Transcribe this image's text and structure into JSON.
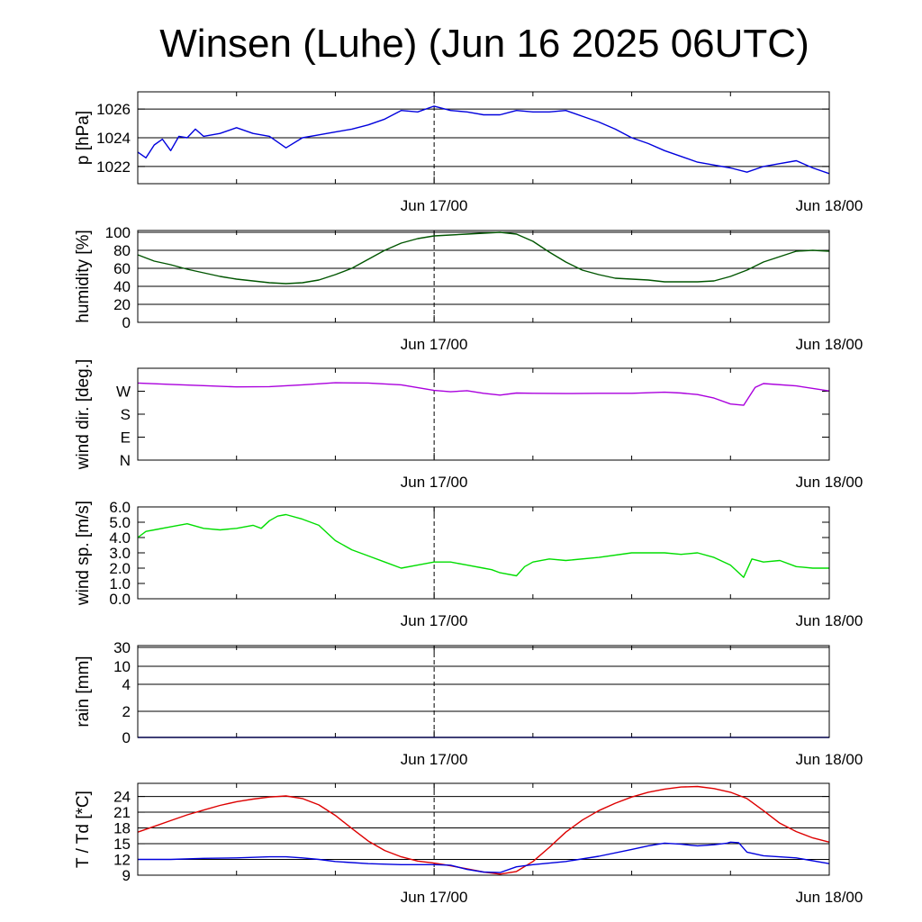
{
  "title": "Winsen (Luhe) (Jun 16 2025 06UTC)",
  "x_tick_labels": [
    "Jun 17/00",
    "Jun 18/00"
  ],
  "chart_data": [
    {
      "type": "line",
      "ylabel": "p [hPa]",
      "ylim": [
        1020.8,
        1027.2
      ],
      "ytick_values": [
        1022,
        1024,
        1026
      ],
      "ytick_labels": [
        "1022",
        "1024",
        "1026"
      ],
      "grid": true,
      "series": [
        {
          "color": "#0000dd",
          "x": [
            0,
            0.5,
            1,
            1.5,
            2,
            2.5,
            3,
            3.5,
            4,
            5,
            6,
            7,
            8,
            9,
            10,
            11,
            12,
            13,
            14,
            15,
            16,
            17,
            18,
            19,
            20,
            21,
            22,
            23,
            24,
            25,
            26,
            27,
            28,
            29,
            30,
            31,
            32,
            33,
            34,
            35,
            36,
            37,
            38,
            39,
            40,
            41,
            42
          ],
          "y": [
            1023.0,
            1022.6,
            1023.5,
            1023.9,
            1023.1,
            1024.1,
            1024.0,
            1024.6,
            1024.1,
            1024.3,
            1024.7,
            1024.3,
            1024.1,
            1023.3,
            1024.0,
            1024.2,
            1024.4,
            1024.6,
            1024.9,
            1025.3,
            1025.9,
            1025.8,
            1026.2,
            1025.9,
            1025.8,
            1025.6,
            1025.6,
            1025.9,
            1025.8,
            1025.8,
            1025.9,
            1025.5,
            1025.1,
            1024.6,
            1024.0,
            1023.6,
            1023.1,
            1022.7,
            1022.3,
            1022.1,
            1021.9,
            1021.6,
            1022.0,
            1022.2,
            1022.4,
            1021.9,
            1021.5
          ]
        }
      ]
    },
    {
      "type": "line",
      "ylabel": "humidity [%]",
      "ylim": [
        0,
        102
      ],
      "ytick_values": [
        0,
        20,
        40,
        60,
        80,
        100
      ],
      "ytick_labels": [
        "0",
        "20",
        "40",
        "60",
        "80",
        "100"
      ],
      "grid": true,
      "series": [
        {
          "color": "#005500",
          "x": [
            0,
            1,
            2,
            3,
            4,
            5,
            6,
            7,
            8,
            9,
            10,
            11,
            12,
            13,
            14,
            15,
            16,
            17,
            18,
            19,
            20,
            21,
            22,
            23,
            24,
            25,
            26,
            27,
            28,
            29,
            30,
            31,
            32,
            33,
            34,
            35,
            36,
            37,
            38,
            39,
            40,
            41,
            42
          ],
          "y": [
            75,
            68,
            64,
            59,
            55,
            51,
            48,
            46,
            44,
            43,
            44,
            47,
            53,
            60,
            70,
            80,
            88,
            93,
            96,
            97,
            98,
            99,
            100,
            98,
            90,
            78,
            67,
            58,
            53,
            49,
            48,
            47,
            45,
            45,
            45,
            46,
            51,
            58,
            67,
            73,
            79,
            80,
            79
          ]
        }
      ]
    },
    {
      "type": "line",
      "ylabel": "wind dir. [deg.]",
      "ylim": [
        0,
        360
      ],
      "ytick_values": [
        0,
        90,
        180,
        270
      ],
      "ytick_labels": [
        "N",
        "E",
        "S",
        "W"
      ],
      "grid": false,
      "series": [
        {
          "color": "#aa00dd",
          "x": [
            0,
            2,
            4,
            6,
            8,
            10,
            12,
            14,
            16,
            18,
            19,
            20,
            21,
            22,
            23,
            24,
            26,
            28,
            30,
            32,
            33,
            34,
            35,
            36,
            36.8,
            37.5,
            38,
            40,
            42
          ],
          "y": [
            302,
            297,
            292,
            287,
            288,
            295,
            303,
            302,
            295,
            273,
            268,
            272,
            262,
            255,
            263,
            262,
            261,
            262,
            262,
            266,
            263,
            257,
            243,
            220,
            215,
            285,
            300,
            291,
            271
          ]
        }
      ]
    },
    {
      "type": "line",
      "ylabel": "wind sp. [m/s]",
      "ylim": [
        0,
        6.0
      ],
      "ytick_values": [
        0,
        1,
        2,
        3,
        4,
        5,
        6
      ],
      "ytick_labels": [
        "0.0",
        "1.0",
        "2.0",
        "3.0",
        "4.0",
        "5.0",
        "6.0"
      ],
      "grid": false,
      "series": [
        {
          "color": "#00dd00",
          "x": [
            0,
            0.5,
            1,
            2,
            3,
            4,
            5,
            6,
            7,
            7.5,
            8,
            8.5,
            9,
            10,
            11,
            12,
            13,
            14,
            15,
            16,
            17,
            18,
            19,
            20,
            21,
            21.5,
            22,
            23,
            23.5,
            24,
            25,
            26,
            28,
            30,
            31,
            32,
            33,
            34,
            35,
            36,
            36.8,
            37.3,
            38,
            39,
            40,
            41,
            42
          ],
          "y": [
            4.0,
            4.4,
            4.5,
            4.7,
            4.9,
            4.6,
            4.5,
            4.6,
            4.8,
            4.6,
            5.1,
            5.4,
            5.5,
            5.2,
            4.8,
            3.8,
            3.2,
            2.8,
            2.4,
            2.0,
            2.2,
            2.4,
            2.4,
            2.2,
            2.0,
            1.9,
            1.7,
            1.5,
            2.1,
            2.4,
            2.6,
            2.5,
            2.7,
            3.0,
            3.0,
            3.0,
            2.9,
            3.0,
            2.7,
            2.2,
            1.4,
            2.6,
            2.4,
            2.5,
            2.1,
            2.0,
            2.0
          ]
        }
      ]
    },
    {
      "type": "line",
      "ylabel": "rain [mm]",
      "ytick_values": [
        0,
        2,
        4,
        10,
        30
      ],
      "ytick_labels": [
        "0",
        "2",
        "4",
        "10",
        "30"
      ],
      "grid": true,
      "series": [
        {
          "color": "#0000dd",
          "x": [
            0,
            42
          ],
          "y": [
            0,
            0
          ]
        }
      ]
    },
    {
      "type": "line",
      "ylabel": "T / Td [*C]",
      "ylim": [
        9,
        26.5
      ],
      "ytick_values": [
        9,
        12,
        15,
        18,
        21,
        24
      ],
      "ytick_labels": [
        "9",
        "12",
        "15",
        "18",
        "21",
        "24"
      ],
      "grid": true,
      "series": [
        {
          "color": "#dd0000",
          "x": [
            0,
            1,
            2,
            3,
            4,
            5,
            6,
            7,
            8,
            9,
            10,
            11,
            12,
            13,
            14,
            15,
            16,
            17,
            18,
            19,
            20,
            21,
            22,
            23,
            24,
            25,
            26,
            27,
            28,
            29,
            30,
            31,
            32,
            33,
            34,
            35,
            36,
            37,
            38,
            39,
            40,
            41,
            42
          ],
          "y": [
            17.2,
            18.3,
            19.4,
            20.5,
            21.4,
            22.3,
            23.0,
            23.5,
            23.9,
            24.1,
            23.6,
            22.4,
            20.4,
            17.9,
            15.5,
            13.7,
            12.5,
            11.7,
            11.3,
            10.8,
            10.2,
            9.6,
            9.2,
            9.7,
            11.6,
            14.3,
            17.2,
            19.5,
            21.3,
            22.7,
            23.9,
            24.8,
            25.4,
            25.8,
            25.9,
            25.5,
            24.8,
            23.6,
            21.3,
            18.9,
            17.3,
            16.1,
            15.3
          ]
        },
        {
          "color": "#0000dd",
          "x": [
            0,
            2,
            4,
            6,
            8,
            9,
            10,
            11,
            12,
            14,
            16,
            18,
            19,
            20,
            21,
            22,
            23,
            24,
            26,
            28,
            30,
            31,
            32,
            33,
            34,
            35,
            35.8,
            36,
            36.5,
            37,
            38,
            40,
            42
          ],
          "y": [
            12.0,
            12.0,
            12.2,
            12.3,
            12.5,
            12.5,
            12.3,
            12.0,
            11.6,
            11.2,
            11.0,
            11.0,
            10.9,
            10.1,
            9.6,
            9.5,
            10.6,
            11.0,
            11.6,
            12.6,
            13.9,
            14.6,
            15.1,
            14.9,
            14.6,
            14.8,
            15.1,
            15.3,
            15.2,
            13.4,
            12.7,
            12.3,
            11.2
          ]
        }
      ]
    }
  ]
}
